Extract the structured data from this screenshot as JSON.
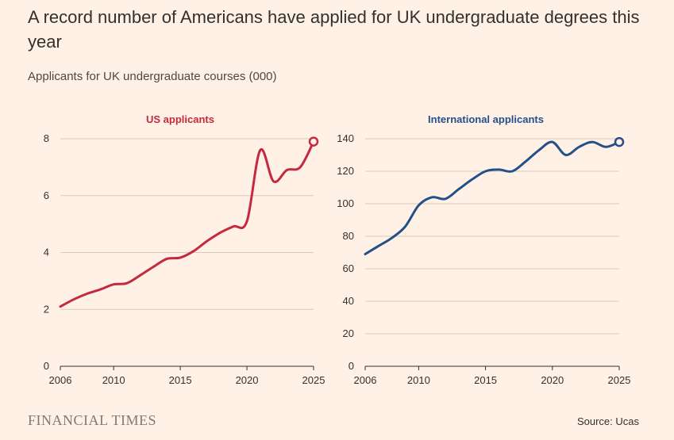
{
  "header": {
    "title": "A record number of Americans have applied for UK undergraduate degrees this year",
    "subtitle": "Applicants for UK undergraduate courses (000)"
  },
  "footer": {
    "logo_text": "FINANCIAL TIMES",
    "source": "Source: Ucas"
  },
  "colors": {
    "background": "#fff1e5",
    "us": "#c5293e",
    "international": "#24508a",
    "grid": "#d6cbc0",
    "text": "#33302e"
  },
  "chart_data": [
    {
      "type": "line",
      "title": "US applicants",
      "xlabel": "",
      "ylabel": "",
      "xlim": [
        2006,
        2025
      ],
      "ylim": [
        0,
        8
      ],
      "x_ticks": [
        2006,
        2010,
        2015,
        2020,
        2025
      ],
      "y_ticks": [
        0,
        2,
        4,
        6,
        8
      ],
      "grid": true,
      "color": "#c5293e",
      "marker": "open circle on last point",
      "series": [
        {
          "name": "US applicants",
          "x": [
            2006,
            2007,
            2008,
            2009,
            2010,
            2011,
            2012,
            2013,
            2014,
            2015,
            2016,
            2017,
            2018,
            2019,
            2020,
            2021,
            2022,
            2023,
            2024,
            2025
          ],
          "values": [
            2.1,
            2.35,
            2.55,
            2.7,
            2.88,
            2.92,
            3.2,
            3.5,
            3.78,
            3.82,
            4.05,
            4.4,
            4.7,
            4.92,
            5.1,
            7.6,
            6.5,
            6.9,
            7.0,
            7.9
          ]
        }
      ]
    },
    {
      "type": "line",
      "title": "International applicants",
      "xlabel": "",
      "ylabel": "",
      "xlim": [
        2006,
        2025
      ],
      "ylim": [
        0,
        140
      ],
      "x_ticks": [
        2006,
        2010,
        2015,
        2020,
        2025
      ],
      "y_ticks": [
        0,
        20,
        40,
        60,
        80,
        100,
        120,
        140
      ],
      "grid": true,
      "color": "#24508a",
      "marker": "open circle on last point",
      "series": [
        {
          "name": "International applicants",
          "x": [
            2006,
            2007,
            2008,
            2009,
            2010,
            2011,
            2012,
            2013,
            2014,
            2015,
            2016,
            2017,
            2018,
            2019,
            2020,
            2021,
            2022,
            2023,
            2024,
            2025
          ],
          "values": [
            69,
            74,
            79,
            86,
            99,
            104,
            103,
            109,
            115,
            120,
            121,
            120,
            126,
            133,
            138,
            130,
            135,
            138,
            135,
            138
          ]
        }
      ]
    }
  ]
}
